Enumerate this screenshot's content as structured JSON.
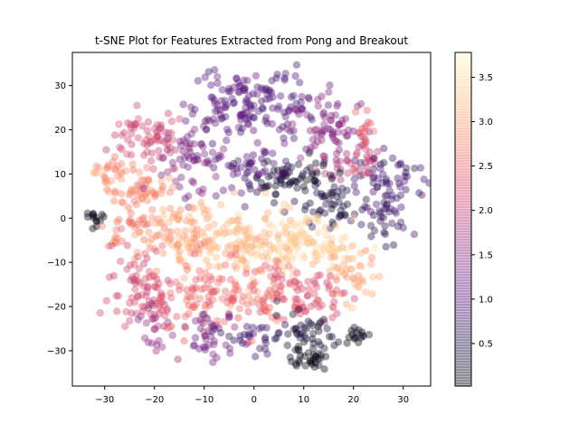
{
  "chart_data": {
    "type": "scatter",
    "title": "t-SNE Plot for Features Extracted from Pong and Breakout",
    "xlabel": "",
    "ylabel": "",
    "xlim": [
      -36.5,
      35.5
    ],
    "ylim": [
      -38,
      37.5
    ],
    "xticks": [
      -30,
      -20,
      -10,
      0,
      10,
      20,
      30
    ],
    "yticks": [
      -30,
      -20,
      -10,
      0,
      10,
      20,
      30
    ],
    "grid": false,
    "colormap": "magma",
    "colorbar": {
      "range": [
        0.02,
        3.78
      ],
      "ticks": [
        0.5,
        1.0,
        1.5,
        2.0,
        2.5,
        3.0,
        3.5
      ]
    },
    "marker_alpha": 0.4,
    "clusters": [
      {
        "cx": -32,
        "cy": 0,
        "sx": 1.3,
        "sy": 0.9,
        "n": 14,
        "value": 0.15
      },
      {
        "cx": -29,
        "cy": 10.5,
        "sx": 1.6,
        "sy": 2.2,
        "n": 25,
        "value": 2.85
      },
      {
        "cx": -28.5,
        "cy": -5.5,
        "sx": 0.8,
        "sy": 0.7,
        "n": 7,
        "value": 2.8
      },
      {
        "cx": -21,
        "cy": 18,
        "sx": 4,
        "sy": 3,
        "n": 65,
        "value": 2.15
      },
      {
        "cx": -22,
        "cy": 6,
        "sx": 3,
        "sy": 3,
        "n": 50,
        "value": 2.75
      },
      {
        "cx": -12,
        "cy": 13,
        "sx": 3,
        "sy": 4,
        "n": 60,
        "value": 1.35
      },
      {
        "cx": -6,
        "cy": 26,
        "sx": 4,
        "sy": 4,
        "n": 70,
        "value": 1.05
      },
      {
        "cx": 3,
        "cy": 27,
        "sx": 5,
        "sy": 4,
        "n": 80,
        "value": 0.95
      },
      {
        "cx": 15,
        "cy": 20,
        "sx": 4,
        "sy": 4,
        "n": 65,
        "value": 1.45
      },
      {
        "cx": 22,
        "cy": 20,
        "sx": 1.2,
        "sy": 3.5,
        "n": 20,
        "value": 2.45
      },
      {
        "cx": 20,
        "cy": 13,
        "sx": 3,
        "sy": 2,
        "n": 35,
        "value": 1.9
      },
      {
        "cx": 27,
        "cy": 7.5,
        "sx": 3.5,
        "sy": 3.5,
        "n": 60,
        "value": 0.75
      },
      {
        "cx": 7,
        "cy": 9,
        "sx": 5,
        "sy": 2.5,
        "n": 75,
        "value": 0.3
      },
      {
        "cx": 0,
        "cy": 12,
        "sx": 4,
        "sy": 3,
        "n": 45,
        "value": 1.0
      },
      {
        "cx": 16,
        "cy": 2,
        "sx": 3.5,
        "sy": 2.5,
        "n": 40,
        "value": 0.45
      },
      {
        "cx": 27,
        "cy": -1,
        "sx": 2,
        "sy": 2.5,
        "n": 25,
        "value": 0.7
      },
      {
        "cx": -24,
        "cy": -2,
        "sx": 3,
        "sy": 2,
        "n": 30,
        "value": 2.7
      },
      {
        "cx": -14,
        "cy": -4,
        "sx": 4,
        "sy": 4,
        "n": 80,
        "value": 3.0
      },
      {
        "cx": -2,
        "cy": -6,
        "sx": 5,
        "sy": 4,
        "n": 110,
        "value": 3.2
      },
      {
        "cx": 10,
        "cy": -6,
        "sx": 5,
        "sy": 3,
        "n": 100,
        "value": 3.35
      },
      {
        "cx": 20,
        "cy": -13,
        "sx": 2.5,
        "sy": 3,
        "n": 40,
        "value": 3.05
      },
      {
        "cx": -22,
        "cy": -16,
        "sx": 3.5,
        "sy": 5,
        "n": 80,
        "value": 2.2
      },
      {
        "cx": -10,
        "cy": -17,
        "sx": 4,
        "sy": 5,
        "n": 80,
        "value": 2.55
      },
      {
        "cx": 2,
        "cy": -17,
        "sx": 4,
        "sy": 4,
        "n": 70,
        "value": 2.5
      },
      {
        "cx": 12,
        "cy": -18,
        "sx": 3,
        "sy": 3,
        "n": 50,
        "value": 2.25
      },
      {
        "cx": -9,
        "cy": -27,
        "sx": 3,
        "sy": 2.5,
        "n": 40,
        "value": 1.3
      },
      {
        "cx": -20,
        "cy": -25,
        "sx": 2,
        "sy": 2,
        "n": 20,
        "value": 1.6
      },
      {
        "cx": 1,
        "cy": -27,
        "sx": 3,
        "sy": 2.5,
        "n": 30,
        "value": 0.7
      },
      {
        "cx": 11,
        "cy": -27,
        "sx": 3,
        "sy": 3,
        "n": 45,
        "value": 0.35
      },
      {
        "cx": 11,
        "cy": -32,
        "sx": 2,
        "sy": 1.3,
        "n": 25,
        "value": 0.05
      },
      {
        "cx": 20,
        "cy": -26,
        "sx": 1.6,
        "sy": 1.3,
        "n": 16,
        "value": 0.1
      }
    ]
  }
}
